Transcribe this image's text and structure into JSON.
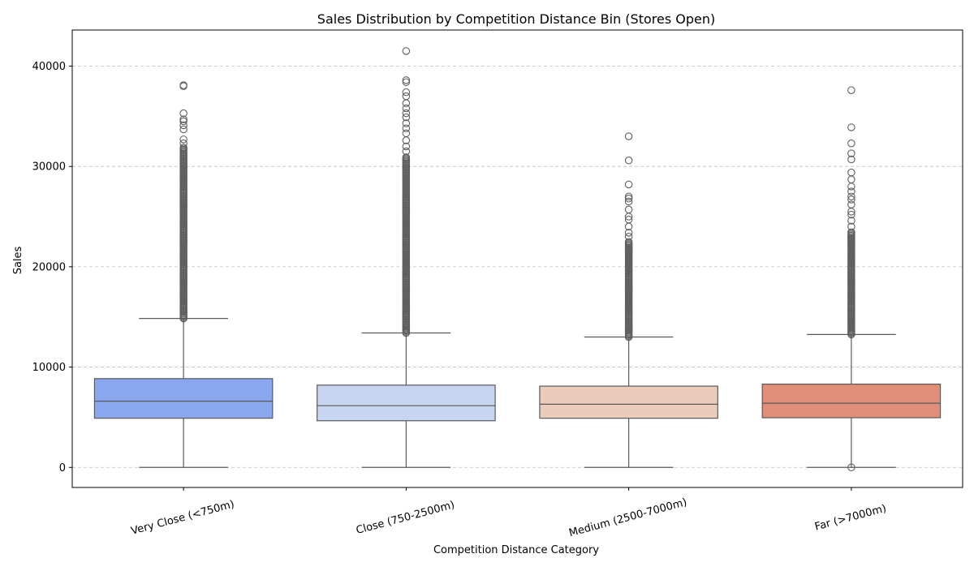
{
  "chart_data": {
    "type": "box",
    "title": "Sales Distribution by Competition Distance Bin (Stores Open)",
    "xlabel": "Competition Distance Category",
    "ylabel": "Sales",
    "ylim": [
      -2000,
      43600
    ],
    "yticks": [
      0,
      10000,
      20000,
      30000,
      40000
    ],
    "grid": "y, dashed",
    "categories": [
      "Very Close (<750m)",
      "Close (750-2500m)",
      "Medium (2500-7000m)",
      "Far (>7000m)"
    ],
    "boxes": [
      {
        "category": "Very Close (<750m)",
        "color": "#8aa6ef",
        "whisker_low": 0,
        "q1": 4900,
        "median": 6600,
        "q3": 8850,
        "whisker_high": 14850,
        "outliers_dense_range": [
          14850,
          32000
        ],
        "outliers": [
          32300,
          32700,
          33700,
          34100,
          34500,
          34700,
          35300,
          38000,
          38100
        ]
      },
      {
        "category": "Close (750-2500m)",
        "color": "#c7d5f1",
        "whisker_low": 0,
        "q1": 4650,
        "median": 6150,
        "q3": 8200,
        "whisker_high": 13400,
        "outliers_dense_range": [
          13400,
          31000
        ],
        "outliers": [
          31500,
          32000,
          32600,
          33300,
          33800,
          34300,
          34900,
          35300,
          35800,
          36300,
          37000,
          37400,
          38400,
          38600,
          41500
        ]
      },
      {
        "category": "Medium (2500-7000m)",
        "color": "#ebcbbb",
        "whisker_low": 0,
        "q1": 4900,
        "median": 6300,
        "q3": 8100,
        "whisker_high": 13000,
        "outliers_dense_range": [
          13000,
          22500
        ],
        "outliers": [
          23000,
          23400,
          24000,
          24700,
          25000,
          25700,
          26500,
          26800,
          27000,
          28200,
          30600,
          33000
        ]
      },
      {
        "category": "Far (>7000m)",
        "color": "#e08e77",
        "whisker_low": 0,
        "q1": 4950,
        "median": 6400,
        "q3": 8300,
        "whisker_high": 13250,
        "outliers_dense_range": [
          13250,
          23500
        ],
        "outliers": [
          0,
          24000,
          24600,
          25200,
          25500,
          26200,
          26700,
          27000,
          27500,
          28000,
          28700,
          29400,
          30700,
          31300,
          32300,
          33900,
          37600
        ]
      }
    ]
  }
}
